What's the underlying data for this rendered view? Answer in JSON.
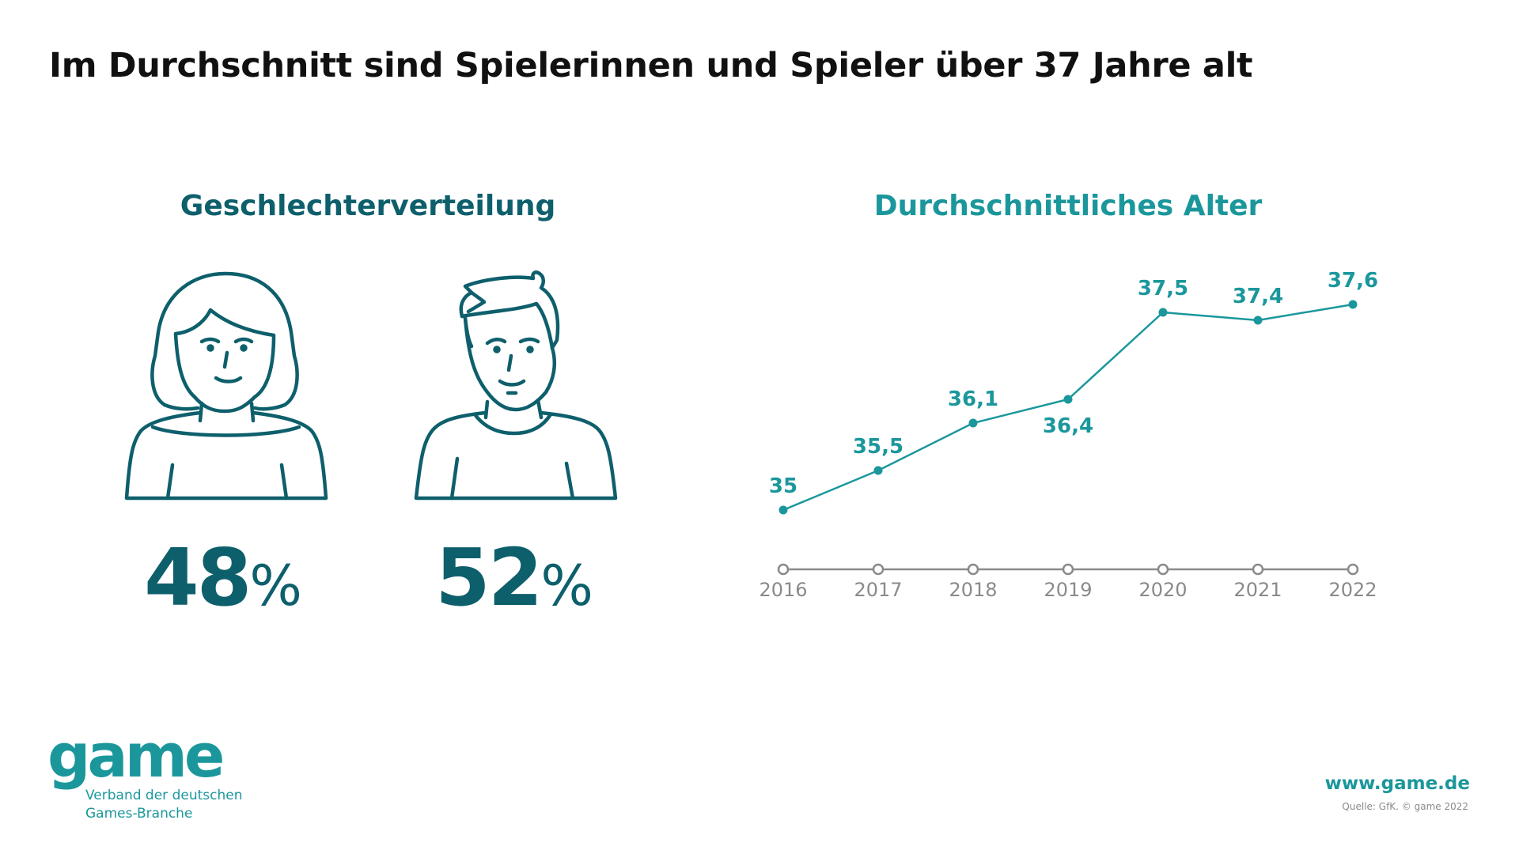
{
  "title": "Im Durchschnitt sind Spielerinnen und Spieler über 37 Jahre alt",
  "left_panel": {
    "heading": "Geschlechterverteilung",
    "women": {
      "icon": "woman-icon",
      "value": "48",
      "unit": "%"
    },
    "men": {
      "icon": "man-icon",
      "value": "52",
      "unit": "%"
    }
  },
  "right_panel": {
    "heading": "Durchschnittliches Alter"
  },
  "colors": {
    "dark_teal": "#0e5f6c",
    "teal": "#1b979c",
    "axis_gray": "#8a8a8a",
    "title": "#111111"
  },
  "chart_data": [
    {
      "type": "pie",
      "title": "Geschlechterverteilung",
      "categories": [
        "Frauen",
        "Männer"
      ],
      "values": [
        48,
        52
      ],
      "unit": "%"
    },
    {
      "type": "line",
      "title": "Durchschnittliches Alter",
      "x": [
        "2016",
        "2017",
        "2018",
        "2019",
        "2020",
        "2021",
        "2022"
      ],
      "series": [
        {
          "name": "Durchschnittliches Alter",
          "values": [
            35,
            35.5,
            36.1,
            36.4,
            37.5,
            37.4,
            37.6
          ]
        }
      ],
      "data_labels": [
        "35",
        "35,5",
        "36,1",
        "36,4",
        "37,5",
        "37,4",
        "37,6"
      ],
      "xlabel": "",
      "ylabel": "",
      "ylim": [
        35,
        37.6
      ],
      "grid": false,
      "legend": "none"
    }
  ],
  "footer": {
    "logo_word": "game",
    "logo_line1": "Verband der deutschen",
    "logo_line2": "Games-Branche",
    "website": "www.game.de",
    "source": "Quelle: GfK. © game 2022"
  }
}
